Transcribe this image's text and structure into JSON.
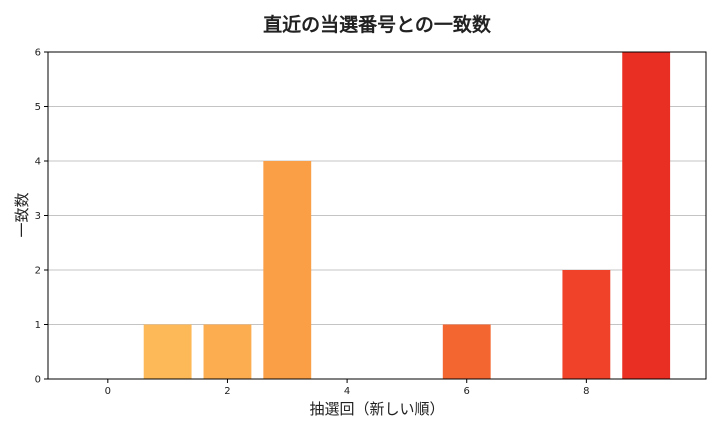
{
  "chart_data": {
    "type": "bar",
    "title": "直近の当選番号との一致数",
    "xlabel": "抽選回（新しい順）",
    "ylabel": "一致数",
    "x": [
      0,
      1,
      2,
      3,
      4,
      5,
      6,
      7,
      8,
      9
    ],
    "values": [
      0,
      1,
      1,
      4,
      0,
      0,
      1,
      0,
      2,
      6
    ],
    "bar_colors": [
      "#ffc55f",
      "#fdb957",
      "#fcad4f",
      "#fb9f47",
      "#fa8c3e",
      "#f87536",
      "#f4662f",
      "#f1552b",
      "#ef4228",
      "#e92e23"
    ],
    "xlim": [
      -1,
      10
    ],
    "ylim": [
      0,
      6
    ],
    "xticks": [
      0,
      2,
      4,
      6,
      8
    ],
    "yticks": [
      0,
      1,
      2,
      3,
      4,
      5,
      6
    ],
    "grid": "y-axis"
  }
}
